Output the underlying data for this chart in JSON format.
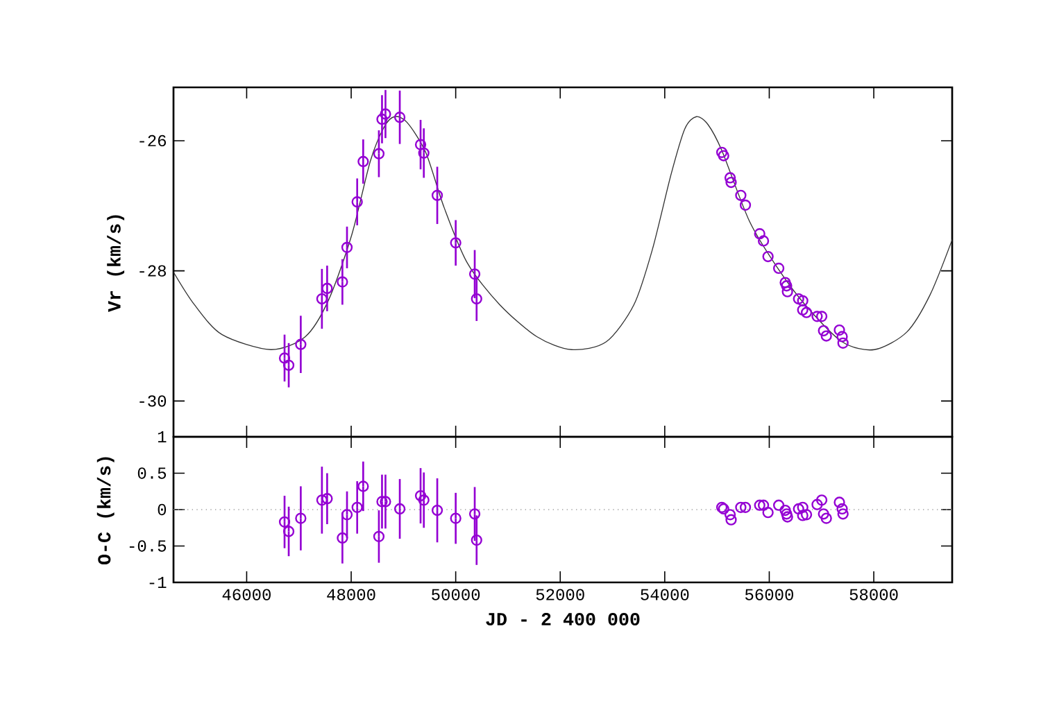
{
  "chart_data": [
    {
      "type": "scatter",
      "ylabel": "Vr (km/s)",
      "xlim": [
        44600,
        59500
      ],
      "ylim": [
        -30.55,
        -25.18
      ],
      "xticks": [
        46000,
        48000,
        50000,
        52000,
        54000,
        56000,
        58000
      ],
      "yticks": [
        -30,
        -28,
        -26
      ],
      "tick_labels": "y",
      "series": [
        {
          "type": "line",
          "color": "#333333",
          "marker": "none",
          "line_style": "solid",
          "x": [
            44600,
            45000,
            45530,
            46460,
            47124,
            47566,
            48010,
            48364,
            48630,
            48830,
            49070,
            49426,
            49780,
            50223,
            50842,
            51551,
            52215,
            52879,
            53410,
            53764,
            54117,
            54383,
            54606,
            54826,
            55092,
            55622,
            56154,
            56685,
            57395,
            58013,
            58632,
            59076,
            59500
          ],
          "values": [
            -28.02,
            -28.52,
            -28.98,
            -29.21,
            -29.01,
            -28.45,
            -27.45,
            -26.32,
            -25.79,
            -25.63,
            -25.72,
            -26.18,
            -27.03,
            -27.88,
            -28.52,
            -29.01,
            -29.21,
            -29.09,
            -28.52,
            -27.67,
            -26.53,
            -25.82,
            -25.63,
            -25.75,
            -26.15,
            -27.24,
            -27.95,
            -28.52,
            -29.09,
            -29.21,
            -28.94,
            -28.37,
            -27.52
          ]
        },
        {
          "color": "#9400d3",
          "marker": "circle",
          "x": [
            46725,
            46805,
            47035,
            47440,
            47540,
            47832,
            47920,
            48115,
            48230,
            48530,
            48590,
            48656,
            48930,
            49328,
            49390,
            49647,
            50000,
            50364,
            50400,
            55092,
            55127,
            55251,
            55270,
            55455,
            55543,
            55817,
            55889,
            55976,
            56181,
            56306,
            56332,
            56348,
            56561,
            56640,
            56640,
            56712,
            56916,
            57004,
            57039,
            57092,
            57342,
            57395,
            57411
          ],
          "values": [
            -29.34,
            -29.45,
            -29.13,
            -28.43,
            -28.27,
            -28.17,
            -27.64,
            -26.94,
            -26.32,
            -26.2,
            -25.67,
            -25.59,
            -25.64,
            -26.06,
            -26.19,
            -26.84,
            -27.57,
            -28.05,
            -28.43,
            -26.18,
            -26.23,
            -26.57,
            -26.64,
            -26.84,
            -26.99,
            -27.43,
            -27.54,
            -27.78,
            -27.96,
            -28.18,
            -28.23,
            -28.32,
            -28.43,
            -28.46,
            -28.6,
            -28.64,
            -28.7,
            -28.7,
            -28.92,
            -29.0,
            -28.91,
            -29.01,
            -29.11
          ],
          "errors": [
            0.36,
            0.34,
            0.44,
            0.46,
            0.35,
            0.35,
            0.32,
            0.36,
            0.34,
            0.36,
            0.37,
            0.37,
            0.41,
            0.38,
            0.38,
            0.44,
            0.35,
            0.37,
            0.34,
            null,
            null,
            null,
            null,
            null,
            null,
            null,
            null,
            null,
            null,
            null,
            null,
            null,
            null,
            null,
            null,
            null,
            null,
            null,
            null,
            null,
            null,
            null,
            null
          ]
        }
      ]
    },
    {
      "type": "scatter",
      "xlabel": "JD - 2 400 000",
      "ylabel": "O-C (km/s)",
      "xlim": [
        44600,
        59500
      ],
      "ylim": [
        -1,
        1
      ],
      "xticks": [
        46000,
        48000,
        50000,
        52000,
        54000,
        56000,
        58000
      ],
      "yticks": [
        -1,
        -0.5,
        0,
        0.5,
        1
      ],
      "ref_lines": [
        {
          "axis": "y",
          "value": 0,
          "color": "#a0a0a0",
          "line_style": "dotted"
        }
      ],
      "series": [
        {
          "color": "#9400d3",
          "marker": "circle",
          "x": [
            46725,
            46805,
            47035,
            47440,
            47540,
            47832,
            47920,
            48115,
            48230,
            48530,
            48590,
            48656,
            48930,
            49328,
            49390,
            49647,
            50000,
            50364,
            50400,
            55092,
            55127,
            55251,
            55270,
            55455,
            55543,
            55817,
            55889,
            55976,
            56181,
            56306,
            56332,
            56348,
            56561,
            56640,
            56640,
            56712,
            56916,
            57004,
            57039,
            57092,
            57342,
            57395,
            57411
          ],
          "values": [
            -0.17,
            -0.3,
            -0.12,
            0.13,
            0.15,
            -0.39,
            -0.07,
            0.03,
            0.32,
            -0.37,
            0.11,
            0.11,
            0.01,
            0.19,
            0.13,
            -0.01,
            -0.12,
            -0.06,
            -0.42,
            0.03,
            0.01,
            -0.07,
            -0.14,
            0.03,
            0.03,
            0.06,
            0.06,
            -0.04,
            0.06,
            -0.01,
            -0.06,
            -0.1,
            0.01,
            0.03,
            -0.08,
            -0.07,
            0.07,
            0.13,
            -0.06,
            -0.12,
            0.1,
            0.01,
            -0.06
          ],
          "errors": [
            0.36,
            0.34,
            0.44,
            0.46,
            0.35,
            0.35,
            0.32,
            0.36,
            0.34,
            0.36,
            0.37,
            0.37,
            0.41,
            0.38,
            0.38,
            0.44,
            0.35,
            0.37,
            0.34,
            null,
            null,
            null,
            null,
            null,
            null,
            null,
            null,
            null,
            null,
            null,
            null,
            null,
            null,
            null,
            null,
            null,
            null,
            null,
            null,
            null,
            null,
            null,
            null
          ]
        }
      ]
    }
  ]
}
